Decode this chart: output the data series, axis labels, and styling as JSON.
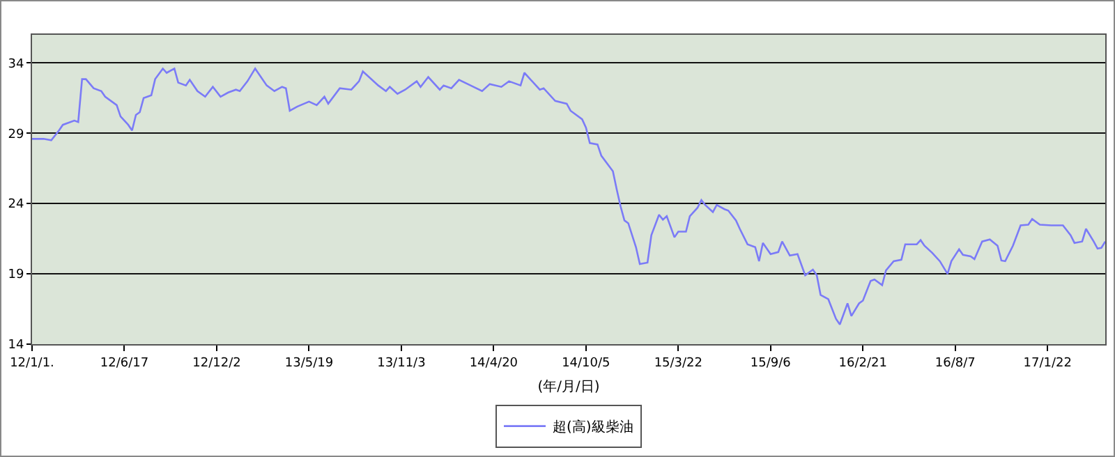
{
  "chart_data": {
    "type": "line",
    "xlabel": "(年/月/日)",
    "legend": "bottom",
    "grid": "y",
    "marker": "none",
    "line_style": "solid",
    "xlim": [
      "2012-01-01",
      "2017-05-07"
    ],
    "xticks": [
      {
        "value": "2012-01-01",
        "label": "12/1/1."
      },
      {
        "value": "2012-06-17",
        "label": "12/6/17"
      },
      {
        "value": "2012-12-02",
        "label": "12/12/2"
      },
      {
        "value": "2013-05-19",
        "label": "13/5/19"
      },
      {
        "value": "2013-11-03",
        "label": "13/11/3"
      },
      {
        "value": "2014-04-20",
        "label": "14/4/20"
      },
      {
        "value": "2014-10-05",
        "label": "14/10/5"
      },
      {
        "value": "2015-03-22",
        "label": "15/3/22"
      },
      {
        "value": "2015-09-06",
        "label": "15/9/6"
      },
      {
        "value": "2016-02-21",
        "label": "16/2/21"
      },
      {
        "value": "2016-08-07",
        "label": "16/8/7"
      },
      {
        "value": "2017-01-22",
        "label": "17/1/22"
      }
    ],
    "ylim": [
      14,
      36
    ],
    "yticks": [
      14,
      19,
      24,
      29,
      34
    ],
    "x": [
      "2012-01-01",
      "2012-01-22",
      "2012-02-05",
      "2012-02-19",
      "2012-02-26",
      "2012-03-18",
      "2012-03-25",
      "2012-04-01",
      "2012-04-08",
      "2012-04-22",
      "2012-05-06",
      "2012-05-13",
      "2012-06-03",
      "2012-06-10",
      "2012-06-24",
      "2012-07-01",
      "2012-07-08",
      "2012-07-15",
      "2012-07-22",
      "2012-08-05",
      "2012-08-12",
      "2012-08-26",
      "2012-09-02",
      "2012-09-16",
      "2012-09-23",
      "2012-10-07",
      "2012-10-14",
      "2012-10-28",
      "2012-11-11",
      "2012-11-25",
      "2012-12-09",
      "2012-12-23",
      "2013-01-06",
      "2013-01-13",
      "2013-01-27",
      "2013-02-10",
      "2013-03-03",
      "2013-03-17",
      "2013-03-31",
      "2013-04-07",
      "2013-04-14",
      "2013-04-28",
      "2013-05-19",
      "2013-06-02",
      "2013-06-16",
      "2013-06-23",
      "2013-07-14",
      "2013-08-04",
      "2013-08-18",
      "2013-08-25",
      "2013-09-22",
      "2013-10-06",
      "2013-10-13",
      "2013-10-27",
      "2013-11-10",
      "2013-12-01",
      "2013-12-08",
      "2013-12-22",
      "2014-01-12",
      "2014-01-19",
      "2014-02-02",
      "2014-02-16",
      "2014-03-09",
      "2014-03-30",
      "2014-04-13",
      "2014-05-04",
      "2014-05-18",
      "2014-06-08",
      "2014-06-15",
      "2014-07-13",
      "2014-07-20",
      "2014-08-10",
      "2014-08-31",
      "2014-09-07",
      "2014-09-28",
      "2014-10-05",
      "2014-10-12",
      "2014-10-26",
      "2014-11-02",
      "2014-11-23",
      "2014-11-30",
      "2014-12-07",
      "2014-12-14",
      "2014-12-21",
      "2015-01-04",
      "2015-01-11",
      "2015-01-25",
      "2015-02-01",
      "2015-02-15",
      "2015-02-22",
      "2015-03-01",
      "2015-03-15",
      "2015-03-22",
      "2015-04-05",
      "2015-04-12",
      "2015-04-26",
      "2015-05-03",
      "2015-05-10",
      "2015-05-24",
      "2015-05-31",
      "2015-06-14",
      "2015-06-21",
      "2015-07-05",
      "2015-07-12",
      "2015-07-26",
      "2015-08-09",
      "2015-08-16",
      "2015-08-23",
      "2015-09-06",
      "2015-09-20",
      "2015-09-27",
      "2015-10-11",
      "2015-10-25",
      "2015-11-08",
      "2015-11-22",
      "2015-11-29",
      "2015-12-06",
      "2015-12-20",
      "2016-01-03",
      "2016-01-10",
      "2016-01-24",
      "2016-01-31",
      "2016-02-14",
      "2016-02-21",
      "2016-03-06",
      "2016-03-13",
      "2016-03-27",
      "2016-04-03",
      "2016-04-17",
      "2016-05-01",
      "2016-05-08",
      "2016-05-29",
      "2016-06-05",
      "2016-06-12",
      "2016-06-26",
      "2016-07-10",
      "2016-07-24",
      "2016-07-31",
      "2016-08-14",
      "2016-08-21",
      "2016-09-04",
      "2016-09-11",
      "2016-09-25",
      "2016-10-09",
      "2016-10-23",
      "2016-10-30",
      "2016-11-06",
      "2016-11-20",
      "2016-12-04",
      "2016-12-18",
      "2016-12-25",
      "2017-01-08",
      "2017-01-29",
      "2017-02-19",
      "2017-03-05",
      "2017-03-12",
      "2017-03-26",
      "2017-04-02",
      "2017-04-16",
      "2017-04-23",
      "2017-04-30",
      "2017-05-07"
    ],
    "series": [
      {
        "name": "超(高)級柴油",
        "color": "#7b7bf7",
        "values": [
          28.6,
          28.6,
          28.5,
          29.2,
          29.6,
          29.9,
          29.8,
          32.85,
          32.85,
          32.2,
          32.0,
          31.6,
          31.0,
          30.2,
          29.6,
          29.2,
          30.3,
          30.5,
          31.5,
          31.7,
          32.85,
          33.6,
          33.3,
          33.6,
          32.6,
          32.4,
          32.8,
          32.0,
          31.6,
          32.3,
          31.6,
          31.9,
          32.1,
          32.0,
          32.7,
          33.6,
          32.4,
          32.0,
          32.3,
          32.2,
          30.6,
          30.9,
          31.25,
          31.0,
          31.6,
          31.1,
          32.2,
          32.1,
          32.7,
          33.4,
          32.4,
          32.0,
          32.3,
          31.8,
          32.1,
          32.7,
          32.3,
          33.0,
          32.1,
          32.4,
          32.2,
          32.8,
          32.4,
          32.0,
          32.5,
          32.3,
          32.7,
          32.4,
          33.3,
          32.1,
          32.2,
          31.3,
          31.1,
          30.6,
          30.0,
          29.4,
          28.3,
          28.2,
          27.4,
          26.3,
          25.0,
          23.8,
          22.8,
          22.6,
          20.9,
          19.7,
          19.8,
          21.75,
          23.2,
          22.85,
          23.1,
          21.6,
          22.0,
          22.0,
          23.1,
          23.7,
          24.25,
          23.9,
          23.4,
          23.9,
          23.6,
          23.5,
          22.8,
          22.2,
          21.1,
          20.9,
          19.9,
          21.2,
          20.4,
          20.55,
          21.3,
          20.3,
          20.4,
          18.9,
          19.3,
          18.9,
          17.5,
          17.2,
          15.8,
          15.4,
          16.9,
          16.0,
          16.9,
          17.1,
          18.5,
          18.6,
          18.2,
          19.25,
          19.9,
          20.0,
          21.1,
          21.1,
          21.4,
          21.0,
          20.5,
          19.9,
          19.0,
          19.9,
          20.75,
          20.35,
          20.25,
          20.05,
          21.3,
          21.45,
          21.0,
          19.95,
          19.9,
          21.0,
          22.45,
          22.5,
          22.9,
          22.5,
          22.45,
          22.45,
          21.75,
          21.2,
          21.3,
          22.2,
          21.3,
          20.8,
          20.85,
          21.3
        ]
      }
    ]
  }
}
